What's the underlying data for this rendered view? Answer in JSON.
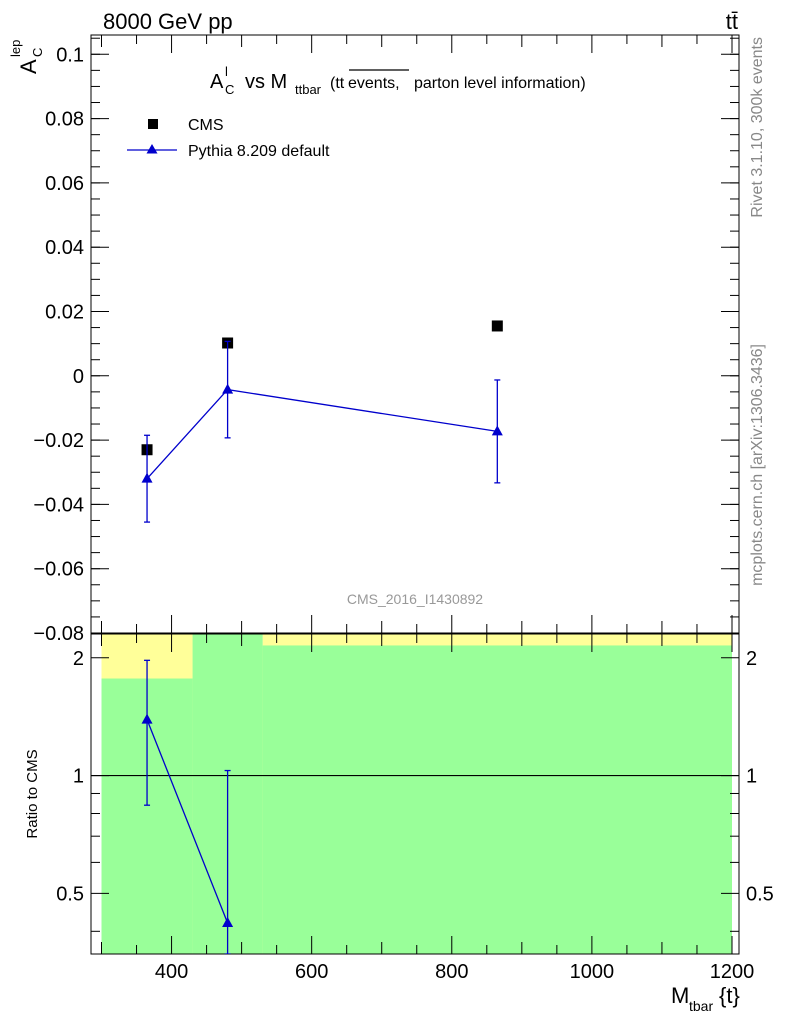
{
  "header": {
    "energy_label": "8000 GeV pp",
    "process_label": "tt̄",
    "side_label_top": "Rivet 3.1.10,  300k events",
    "side_label_bottom": "mcplots.cern.ch [arXiv:1306.3436]",
    "analysis_id": "CMS_2016_I1430892"
  },
  "chart_data": [
    {
      "type": "scatter",
      "title": "A_C^l vs M_ttbar (tt̄ events, parton level information)",
      "title_parts": {
        "a": "A",
        "a_sup": "l",
        "a_sub": "C",
        "vs": "vs M",
        "m_sub": "ttbar",
        "paren_open": "(tt",
        "overline": "events,",
        "rest": "parton level information)"
      },
      "ylabel": "A_C^lep",
      "ylabel_parts": {
        "main": "A",
        "sup": "lep",
        "sub": "C"
      },
      "xlim": [
        285,
        1210
      ],
      "ylim": [
        -0.08,
        0.106
      ],
      "yticks": [
        -0.08,
        -0.06,
        -0.04,
        -0.02,
        0,
        0.02,
        0.04,
        0.06,
        0.08,
        0.1
      ],
      "ytick_labels": [
        "−0.08",
        "−0.06",
        "−0.04",
        "−0.02",
        "0",
        "0.02",
        "0.04",
        "0.06",
        "0.08",
        "0.1"
      ],
      "legend_position": "top-left",
      "series": [
        {
          "name": "CMS",
          "marker": "square",
          "color": "#000000",
          "x": [
            365,
            480,
            865
          ],
          "y": [
            -0.023,
            0.0102,
            0.0155
          ]
        },
        {
          "name": "Pythia 8.209 default",
          "marker": "triangle",
          "color": "#0000cc",
          "x": [
            365,
            480,
            865
          ],
          "y": [
            -0.032,
            -0.0043,
            -0.0173
          ],
          "y_err": [
            0.0135,
            0.015,
            0.016
          ]
        }
      ]
    },
    {
      "type": "scatter",
      "ylabel": "Ratio to CMS",
      "xlabel_parts": {
        "main": "M",
        "sub": "tbar",
        "rest": "{t}"
      },
      "xlim": [
        285,
        1210
      ],
      "ylim": [
        0.35,
        2.3
      ],
      "xticks": [
        400,
        600,
        800,
        1000,
        1200
      ],
      "xtick_labels": [
        "400",
        "600",
        "800",
        "1000",
        "1200"
      ],
      "yticks": [
        0.5,
        1,
        2
      ],
      "ytick_labels": [
        "0.5",
        "1",
        "2"
      ],
      "reference_line": 1,
      "bands": [
        {
          "name": "yellow",
          "color": "#ffff99",
          "bins": [
            [
              300,
              430,
              0.35,
              2.3
            ],
            [
              430,
              530,
              0.35,
              2.3
            ],
            [
              530,
              1200,
              0.35,
              2.3
            ]
          ]
        },
        {
          "name": "green",
          "color": "#99ff99",
          "bins": [
            [
              300,
              430,
              0.35,
              1.77
            ],
            [
              430,
              530,
              0.35,
              2.3
            ],
            [
              530,
              1200,
              0.35,
              2.15
            ]
          ]
        }
      ],
      "series": [
        {
          "name": "Pythia 8.209 default",
          "marker": "triangle",
          "color": "#0000cc",
          "x": [
            365,
            480
          ],
          "y": [
            1.39,
            0.42
          ],
          "y_err_low": [
            0.55,
            0.07
          ],
          "y_err_high": [
            0.58,
            0.61
          ]
        }
      ]
    }
  ]
}
